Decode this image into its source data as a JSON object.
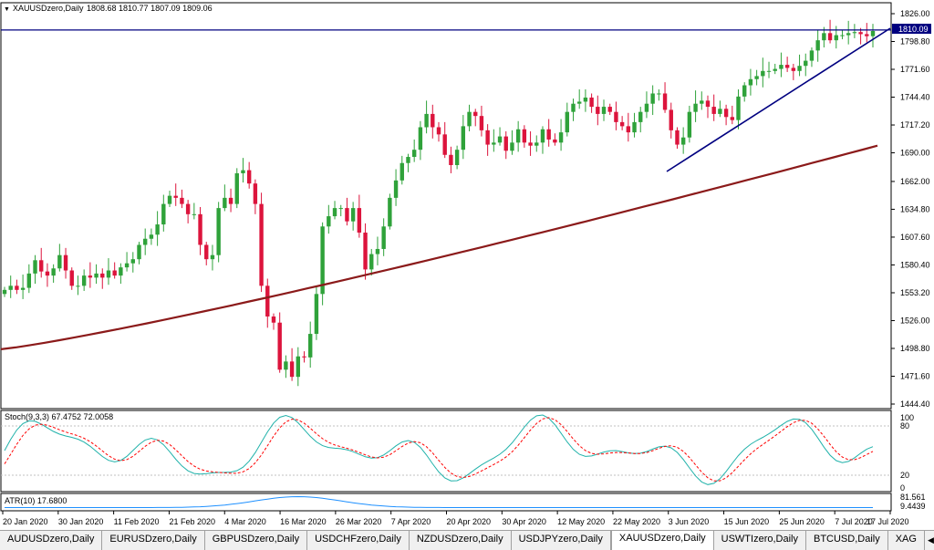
{
  "symbol_header": {
    "menu_icon": "triangle-down-icon",
    "title": "XAUUSDzero,Daily",
    "ohlc": "1808.68 1810.77 1807.09 1809.06"
  },
  "stoch_header": "Stoch(9,3,3) 67.4752 72.0058",
  "atr_header": "ATR(10) 17.6800",
  "colors": {
    "up": "#2fa23a",
    "down": "#dc143c",
    "ma": "#8b1a1a",
    "level_line": "#000080",
    "trendline": "#000080",
    "stoch_main": "#20b2aa",
    "stoch_signal": "#ff0000",
    "atr": "#1e90ff"
  },
  "chart_data": [
    {
      "type": "candlestick",
      "title": "XAUUSDzero,Daily",
      "ylim": [
        1444.4,
        1826.0
      ],
      "y_ticks": [
        "1826.00",
        "1798.80",
        "1771.60",
        "1744.40",
        "1717.20",
        "1690.00",
        "1662.00",
        "1634.80",
        "1607.60",
        "1580.40",
        "1553.20",
        "1526.00",
        "1498.80",
        "1471.60",
        "1444.40"
      ],
      "price_marker": "1810.09",
      "horizontal_level": 1810.09,
      "x_tick_labels": [
        "20 Jan 2020",
        "30 Jan 2020",
        "11 Feb 2020",
        "21 Feb 2020",
        "4 Mar 2020",
        "16 Mar 2020",
        "26 Mar 2020",
        "7 Apr 2020",
        "20 Apr 2020",
        "30 Apr 2020",
        "12 May 2020",
        "22 May 2020",
        "3 Jun 2020",
        "15 Jun 2020",
        "25 Jun 2020",
        "7 Jul 2020",
        "17 Jul 2020"
      ],
      "candles_close": [
        1556,
        1560,
        1556,
        1558,
        1572,
        1585,
        1574,
        1570,
        1577,
        1590,
        1575,
        1560,
        1560,
        1570,
        1568,
        1572,
        1568,
        1575,
        1570,
        1578,
        1582,
        1586,
        1600,
        1606,
        1610,
        1620,
        1640,
        1648,
        1646,
        1640,
        1630,
        1630,
        1600,
        1586,
        1590,
        1636,
        1646,
        1640,
        1670,
        1673,
        1660,
        1640,
        1560,
        1530,
        1524,
        1478,
        1486,
        1471,
        1491,
        1490,
        1513,
        1552,
        1618,
        1628,
        1636,
        1636,
        1623,
        1636,
        1612,
        1576,
        1591,
        1596,
        1618,
        1646,
        1663,
        1680,
        1686,
        1693,
        1715,
        1728,
        1715,
        1708,
        1688,
        1678,
        1693,
        1716,
        1730,
        1726,
        1712,
        1698,
        1700,
        1706,
        1692,
        1700,
        1713,
        1700,
        1697,
        1700,
        1713,
        1703,
        1700,
        1710,
        1730,
        1738,
        1740,
        1744,
        1735,
        1728,
        1735,
        1730,
        1720,
        1716,
        1710,
        1720,
        1730,
        1738,
        1748,
        1748,
        1732,
        1712,
        1698,
        1705,
        1730,
        1738,
        1741,
        1735,
        1728,
        1733,
        1725,
        1722,
        1745,
        1756,
        1762,
        1765,
        1770,
        1770,
        1772,
        1776,
        1773,
        1770,
        1775,
        1780,
        1790,
        1800,
        1807,
        1800,
        1805,
        1805,
        1807,
        1808,
        1806,
        1804,
        1809.06
      ],
      "ma_line": {
        "start": 1498,
        "end": 1697
      }
    },
    {
      "type": "line",
      "title": "Stoch(9,3,3) 67.4752 72.0058",
      "ylim": [
        0,
        100
      ],
      "y_ticks": [
        "100",
        "80",
        "20",
        "0"
      ],
      "series": [
        {
          "name": "main",
          "last": 67.4752
        },
        {
          "name": "signal",
          "last": 72.0058
        }
      ]
    },
    {
      "type": "line",
      "title": "ATR(10) 17.6800",
      "y_ticks": [
        "81.561",
        "9.4439"
      ],
      "series": [
        {
          "name": "atr",
          "last": 17.68
        }
      ]
    }
  ],
  "tabs": [
    {
      "label": "AUDUSDzero,Daily",
      "active": false
    },
    {
      "label": "EURUSDzero,Daily",
      "active": false
    },
    {
      "label": "GBPUSDzero,Daily",
      "active": false
    },
    {
      "label": "USDCHFzero,Daily",
      "active": false
    },
    {
      "label": "NZDUSDzero,Daily",
      "active": false
    },
    {
      "label": "USDJPYzero,Daily",
      "active": false
    },
    {
      "label": "XAUUSDzero,Daily",
      "active": true
    },
    {
      "label": "USWTIzero,Daily",
      "active": false
    },
    {
      "label": "BTCUSD,Daily",
      "active": false
    },
    {
      "label": "XAG",
      "active": false
    }
  ],
  "tab_nav_icon": "scroll-left-icon"
}
